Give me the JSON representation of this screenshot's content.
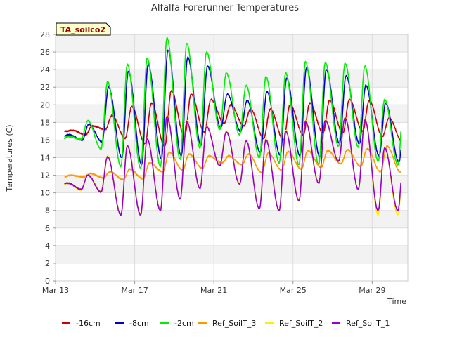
{
  "chart_data": {
    "type": "line",
    "title": "Alfalfa Forerunner Temperatures",
    "xlabel": "Time",
    "ylabel": "Temperatures (C)",
    "station_label": "TA_soilco2",
    "ylim": [
      0,
      28
    ],
    "yticks": [
      0,
      2,
      4,
      6,
      8,
      10,
      12,
      14,
      16,
      18,
      20,
      22,
      24,
      26,
      28
    ],
    "xlim_days": [
      13,
      30.8
    ],
    "xticks": [
      {
        "day": 13,
        "label": "Mar 13"
      },
      {
        "day": 17,
        "label": "Mar 17"
      },
      {
        "day": 21,
        "label": "Mar 21"
      },
      {
        "day": 25,
        "label": "Mar 25"
      },
      {
        "day": 29,
        "label": "Mar 29"
      }
    ],
    "grid": true,
    "legend_position": "bottom",
    "series": [
      {
        "name": "-16cm",
        "color": "#cc0000",
        "min": [
          17.0,
          16.6,
          17.2,
          16.2,
          15.6,
          15.3,
          16.4,
          16.9,
          17.9,
          17.6,
          16.2,
          16.0,
          16.6,
          16.8,
          16.8,
          17.0,
          16.4,
          15.8
        ],
        "max": [
          17.1,
          17.6,
          18.8,
          19.8,
          20.2,
          21.6,
          21.2,
          20.6,
          20.0,
          19.5,
          19.5,
          20.0,
          20.2,
          20.5,
          20.6,
          20.5,
          18.5,
          18.6
        ]
      },
      {
        "name": "-8cm",
        "color": "#0000cc",
        "min": [
          16.4,
          16.0,
          15.8,
          14.0,
          13.2,
          13.9,
          14.2,
          15.4,
          17.4,
          17.0,
          14.6,
          14.3,
          14.2,
          14.1,
          15.6,
          15.6,
          14.2,
          13.5
        ],
        "max": [
          16.6,
          17.8,
          22.0,
          23.8,
          24.6,
          26.2,
          25.4,
          24.4,
          21.2,
          20.5,
          21.5,
          23.0,
          24.2,
          24.0,
          23.3,
          22.2,
          20.2,
          20.2
        ]
      },
      {
        "name": "-2cm",
        "color": "#00ee00",
        "min": [
          16.0,
          16.1,
          15.0,
          13.0,
          12.8,
          13.0,
          13.8,
          15.1,
          17.2,
          16.6,
          14.0,
          13.4,
          13.2,
          13.2,
          15.3,
          15.2,
          13.6,
          13.2
        ],
        "max": [
          16.4,
          18.2,
          22.6,
          24.6,
          25.3,
          27.6,
          27.0,
          26.0,
          23.6,
          22.2,
          23.2,
          23.6,
          24.9,
          24.8,
          24.7,
          24.4,
          20.6,
          21.9
        ]
      },
      {
        "name": "Ref_SoilT_3",
        "color": "#ff9900",
        "min": [
          11.8,
          11.8,
          11.7,
          11.5,
          11.6,
          12.4,
          12.6,
          12.8,
          13.4,
          13.2,
          12.3,
          12.6,
          12.7,
          12.9,
          13.3,
          13.0,
          12.4,
          12.4
        ],
        "max": [
          12.0,
          12.2,
          12.4,
          12.7,
          13.4,
          14.6,
          14.4,
          14.2,
          14.2,
          14.4,
          14.5,
          14.7,
          14.8,
          14.8,
          14.9,
          15.0,
          15.3,
          14.3
        ]
      },
      {
        "name": "Ref_SoilT_2",
        "color": "#ffee00",
        "min": [
          10.9,
          10.3,
          10.2,
          7.6,
          7.6,
          8.1,
          9.3,
          10.6,
          13.2,
          11.1,
          8.2,
          8.1,
          9.2,
          11.2,
          13.7,
          10.5,
          7.5,
          7.5
        ],
        "max": [
          11.1,
          12.1,
          14.2,
          15.4,
          16.2,
          18.8,
          18.2,
          17.6,
          17.0,
          16.0,
          16.1,
          17.1,
          18.2,
          18.3,
          18.6,
          18.4,
          15.2,
          15.6
        ]
      },
      {
        "name": "Ref_SoilT_1",
        "color": "#9900cc",
        "min": [
          11.0,
          10.4,
          10.1,
          7.5,
          7.5,
          8.0,
          9.3,
          10.5,
          13.1,
          11.0,
          8.2,
          8.0,
          9.1,
          11.1,
          13.6,
          10.4,
          8.0,
          8.0
        ],
        "max": [
          11.1,
          12.0,
          14.1,
          15.3,
          16.1,
          18.7,
          18.1,
          17.5,
          16.9,
          15.9,
          16.0,
          17.0,
          18.1,
          18.2,
          18.5,
          18.3,
          15.1,
          15.5
        ]
      }
    ]
  }
}
